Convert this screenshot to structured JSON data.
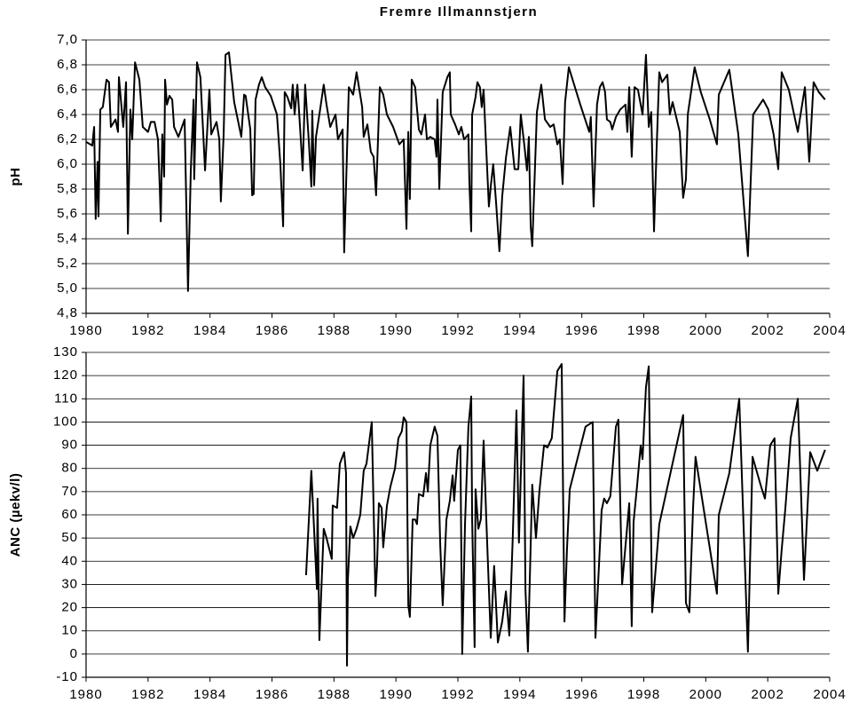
{
  "chart_data": [
    {
      "type": "line",
      "title": "Fremre Illmannstjern",
      "y_label": "pH",
      "xlim": [
        1980,
        2004
      ],
      "xticks": [
        1980,
        1982,
        1984,
        1986,
        1988,
        1990,
        1992,
        1994,
        1996,
        1998,
        2000,
        2002,
        2004
      ],
      "ylim": [
        4.8,
        7.0
      ],
      "yticks": [
        {
          "value": 4.8,
          "label": "4,8"
        },
        {
          "value": 5.0,
          "label": "5,0"
        },
        {
          "value": 5.2,
          "label": "5,2"
        },
        {
          "value": 5.4,
          "label": "5,4"
        },
        {
          "value": 5.6,
          "label": "5,6"
        },
        {
          "value": 5.8,
          "label": "5,8"
        },
        {
          "value": 6.0,
          "label": "6,0"
        },
        {
          "value": 6.2,
          "label": "6,2"
        },
        {
          "value": 6.4,
          "label": "6,4"
        },
        {
          "value": 6.6,
          "label": "6,6"
        },
        {
          "value": 6.8,
          "label": "6,8"
        },
        {
          "value": 7.0,
          "label": "7,0"
        }
      ],
      "grid": true,
      "color": "#000000",
      "x": [
        1980.0,
        1980.2,
        1980.26,
        1980.31,
        1980.37,
        1980.4,
        1980.46,
        1980.54,
        1980.66,
        1980.74,
        1980.8,
        1980.95,
        1981.03,
        1981.06,
        1981.2,
        1981.29,
        1981.35,
        1981.43,
        1981.49,
        1981.58,
        1981.72,
        1981.83,
        1982.0,
        1982.09,
        1982.21,
        1982.32,
        1982.38,
        1982.41,
        1982.46,
        1982.52,
        1982.55,
        1982.61,
        1982.69,
        1982.78,
        1982.84,
        1982.98,
        1983.18,
        1983.29,
        1983.38,
        1983.47,
        1983.49,
        1983.58,
        1983.69,
        1983.84,
        1983.98,
        1984.04,
        1984.21,
        1984.3,
        1984.35,
        1984.44,
        1984.5,
        1984.61,
        1984.78,
        1985.01,
        1985.1,
        1985.15,
        1985.3,
        1985.36,
        1985.41,
        1985.47,
        1985.58,
        1985.67,
        1985.78,
        1985.96,
        1986.16,
        1986.27,
        1986.36,
        1986.41,
        1986.5,
        1986.62,
        1986.67,
        1986.73,
        1986.82,
        1986.93,
        1986.99,
        1987.07,
        1987.19,
        1987.27,
        1987.3,
        1987.36,
        1987.42,
        1987.53,
        1987.67,
        1987.76,
        1987.88,
        1988.05,
        1988.13,
        1988.28,
        1988.33,
        1988.48,
        1988.62,
        1988.73,
        1988.91,
        1988.96,
        1989.08,
        1989.19,
        1989.28,
        1989.36,
        1989.48,
        1989.59,
        1989.71,
        1989.91,
        1990.11,
        1990.25,
        1990.34,
        1990.4,
        1990.45,
        1990.51,
        1990.62,
        1990.74,
        1990.82,
        1990.94,
        1991.0,
        1991.11,
        1991.25,
        1991.31,
        1991.34,
        1991.4,
        1991.51,
        1991.66,
        1991.74,
        1991.77,
        1991.91,
        1992.03,
        1992.11,
        1992.2,
        1992.34,
        1992.37,
        1992.43,
        1992.46,
        1992.57,
        1992.63,
        1992.71,
        1992.77,
        1992.83,
        1992.89,
        1993.0,
        1993.06,
        1993.14,
        1993.23,
        1993.34,
        1993.43,
        1993.55,
        1993.69,
        1993.83,
        1993.95,
        1994.03,
        1994.15,
        1994.23,
        1994.29,
        1994.35,
        1994.4,
        1994.55,
        1994.69,
        1994.81,
        1994.98,
        1995.09,
        1995.21,
        1995.29,
        1995.38,
        1995.46,
        1995.58,
        1995.95,
        1996.24,
        1996.29,
        1996.38,
        1996.49,
        1996.58,
        1996.67,
        1996.75,
        1996.81,
        1996.92,
        1996.98,
        1997.1,
        1997.24,
        1997.41,
        1997.47,
        1997.53,
        1997.61,
        1997.7,
        1997.81,
        1997.96,
        1998.07,
        1998.16,
        1998.24,
        1998.33,
        1998.41,
        1998.5,
        1998.59,
        1998.76,
        1998.84,
        1998.93,
        1999.16,
        1999.27,
        1999.36,
        1999.42,
        1999.64,
        1999.84,
        2000.13,
        2000.36,
        2000.42,
        2000.76,
        2001.05,
        2001.36,
        2001.53,
        2001.85,
        2002.02,
        2002.19,
        2002.34,
        2002.45,
        2002.68,
        2002.97,
        2003.2,
        2003.34,
        2003.48,
        2003.65,
        2003.85
      ],
      "values": [
        6.18,
        6.15,
        6.3,
        5.56,
        6.02,
        5.58,
        6.44,
        6.46,
        6.68,
        6.66,
        6.3,
        6.36,
        6.26,
        6.7,
        6.3,
        6.66,
        5.44,
        6.44,
        6.2,
        6.82,
        6.68,
        6.3,
        6.26,
        6.34,
        6.34,
        6.2,
        5.8,
        5.54,
        6.24,
        5.9,
        6.68,
        6.48,
        6.55,
        6.52,
        6.3,
        6.22,
        6.36,
        4.98,
        5.95,
        6.52,
        5.88,
        6.82,
        6.7,
        5.95,
        6.6,
        6.24,
        6.34,
        6.2,
        5.7,
        6.24,
        6.88,
        6.9,
        6.5,
        6.22,
        6.56,
        6.55,
        6.28,
        5.75,
        5.76,
        6.52,
        6.64,
        6.7,
        6.62,
        6.55,
        6.4,
        6.0,
        5.5,
        6.58,
        6.54,
        6.45,
        6.64,
        6.4,
        6.64,
        6.2,
        5.95,
        6.64,
        6.18,
        5.82,
        6.43,
        5.83,
        6.22,
        6.4,
        6.64,
        6.48,
        6.3,
        6.4,
        6.2,
        6.28,
        5.29,
        6.62,
        6.56,
        6.74,
        6.46,
        6.22,
        6.32,
        6.1,
        6.06,
        5.75,
        6.62,
        6.56,
        6.4,
        6.3,
        6.16,
        6.2,
        5.48,
        6.26,
        5.72,
        6.68,
        6.62,
        6.28,
        6.24,
        6.4,
        6.2,
        6.22,
        6.2,
        6.06,
        6.52,
        5.8,
        6.58,
        6.7,
        6.74,
        6.4,
        6.32,
        6.24,
        6.3,
        6.2,
        6.24,
        5.86,
        5.46,
        6.4,
        6.54,
        6.66,
        6.62,
        6.46,
        6.6,
        6.26,
        5.66,
        5.82,
        6.0,
        5.7,
        5.3,
        5.74,
        6.05,
        6.3,
        5.96,
        5.96,
        6.4,
        6.14,
        5.95,
        6.22,
        5.5,
        5.34,
        6.42,
        6.64,
        6.36,
        6.3,
        6.32,
        6.16,
        6.2,
        5.84,
        6.5,
        6.78,
        6.48,
        6.26,
        6.38,
        5.66,
        6.48,
        6.62,
        6.66,
        6.58,
        6.36,
        6.34,
        6.28,
        6.38,
        6.44,
        6.48,
        6.26,
        6.62,
        6.06,
        6.62,
        6.6,
        6.4,
        6.88,
        6.3,
        6.42,
        5.46,
        6.1,
        6.74,
        6.66,
        6.72,
        6.4,
        6.5,
        6.26,
        5.73,
        5.88,
        6.4,
        6.78,
        6.58,
        6.36,
        6.16,
        6.56,
        6.76,
        6.24,
        5.26,
        6.4,
        6.52,
        6.44,
        6.24,
        5.96,
        6.74,
        6.6,
        6.26,
        6.62,
        6.02,
        6.66,
        6.58,
        6.52
      ]
    },
    {
      "type": "line",
      "y_label": "ANC (µekv/l)",
      "xlim": [
        1980,
        2004
      ],
      "xticks": [
        1980,
        1982,
        1984,
        1986,
        1988,
        1990,
        1992,
        1994,
        1996,
        1998,
        2000,
        2002,
        2004
      ],
      "ylim": [
        -10,
        130
      ],
      "yticks": [
        -10,
        0,
        10,
        20,
        30,
        40,
        50,
        60,
        70,
        80,
        90,
        100,
        110,
        120,
        130
      ],
      "grid": true,
      "color": "#000000",
      "x": [
        1987.1,
        1987.27,
        1987.45,
        1987.47,
        1987.53,
        1987.67,
        1987.76,
        1987.93,
        1987.96,
        1988.1,
        1988.19,
        1988.33,
        1988.39,
        1988.42,
        1988.45,
        1988.53,
        1988.62,
        1988.73,
        1988.85,
        1988.96,
        1989.05,
        1989.22,
        1989.34,
        1989.39,
        1989.45,
        1989.54,
        1989.59,
        1989.71,
        1989.82,
        1989.97,
        1990.08,
        1990.19,
        1990.25,
        1990.34,
        1990.4,
        1990.45,
        1990.54,
        1990.62,
        1990.68,
        1990.74,
        1990.88,
        1990.97,
        1991.03,
        1991.11,
        1991.25,
        1991.34,
        1991.43,
        1991.51,
        1991.63,
        1991.74,
        1991.83,
        1991.88,
        1992.0,
        1992.08,
        1992.14,
        1992.23,
        1992.34,
        1992.43,
        1992.46,
        1992.54,
        1992.57,
        1992.66,
        1992.74,
        1992.83,
        1992.92,
        1993.06,
        1993.17,
        1993.29,
        1993.43,
        1993.55,
        1993.66,
        1993.77,
        1993.89,
        1993.97,
        1994.12,
        1994.18,
        1994.26,
        1994.4,
        1994.52,
        1994.63,
        1994.78,
        1994.89,
        1995.03,
        1995.21,
        1995.35,
        1995.44,
        1995.52,
        1995.61,
        1996.12,
        1996.35,
        1996.44,
        1996.64,
        1996.72,
        1996.81,
        1996.92,
        1997.1,
        1997.18,
        1997.3,
        1997.53,
        1997.61,
        1997.67,
        1997.78,
        1997.9,
        1997.96,
        1998.07,
        1998.16,
        1998.27,
        1998.5,
        1999.27,
        1999.36,
        1999.47,
        1999.59,
        1999.67,
        2000.36,
        2000.42,
        2000.76,
        2001.08,
        2001.36,
        2001.51,
        2001.79,
        2001.91,
        2002.08,
        2002.22,
        2002.34,
        2002.45,
        2002.57,
        2002.74,
        2002.97,
        2003.17,
        2003.37,
        2003.6,
        2003.85
      ],
      "values": [
        34,
        79,
        28,
        67,
        6,
        54,
        50,
        41,
        64,
        63,
        82,
        87,
        78,
        -5,
        32,
        55,
        50,
        54,
        60,
        79,
        82,
        100,
        25,
        38,
        65,
        63,
        46,
        64,
        72,
        80,
        93,
        96,
        102,
        100,
        21,
        16,
        58,
        58,
        56,
        69,
        68,
        78,
        70,
        90,
        98,
        94,
        47,
        21,
        58,
        66,
        77,
        66,
        88,
        90,
        0,
        56,
        98,
        111,
        58,
        3,
        71,
        54,
        58,
        92,
        57,
        7,
        38,
        5,
        14,
        27,
        8,
        50,
        105,
        48,
        120,
        28,
        1,
        73,
        50,
        70,
        90,
        89,
        93,
        122,
        125,
        14,
        45,
        71,
        98,
        100,
        7,
        62,
        67,
        65,
        68,
        98,
        101,
        30,
        65,
        12,
        57,
        72,
        90,
        84,
        115,
        124,
        18,
        56,
        103,
        22,
        18,
        63,
        85,
        26,
        60,
        78,
        110,
        1,
        85,
        72,
        67,
        90,
        93,
        26,
        45,
        63,
        93,
        110,
        32,
        87,
        79,
        88
      ]
    }
  ]
}
